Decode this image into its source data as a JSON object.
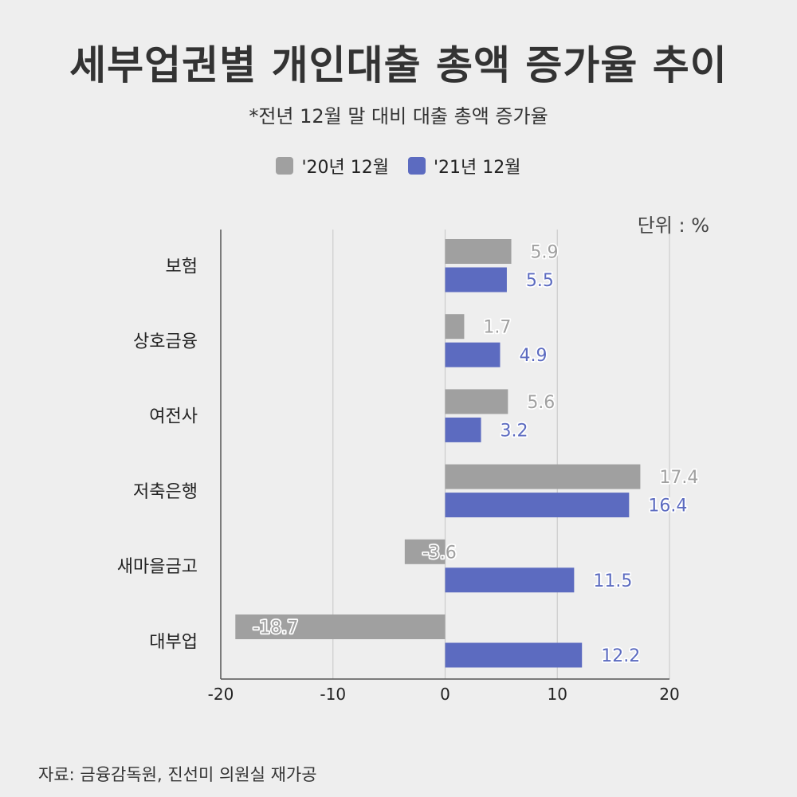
{
  "title": "세부업권별 개인대출 총액 증가율 추이",
  "subtitle": "*전년 12월 말 대비 대출 총액 증가율",
  "source": "자료: 금융감독원, 진선미 의원실 재가공",
  "colors": {
    "series_2020": "#a0a0a0",
    "series_2021": "#5c6bc0",
    "grid": "#cccccc",
    "axis": "#555555",
    "background": "#eeeeee"
  },
  "chart_data": {
    "type": "bar",
    "orientation": "horizontal",
    "categories": [
      "보험",
      "상호금융",
      "여전사",
      "저축은행",
      "새마을금고",
      "대부업"
    ],
    "series": [
      {
        "name": "'20년 12월",
        "values": [
          5.9,
          1.7,
          5.6,
          17.4,
          -3.6,
          -18.7
        ]
      },
      {
        "name": "'21년 12월",
        "values": [
          5.5,
          4.9,
          3.2,
          16.4,
          11.5,
          12.2
        ]
      }
    ],
    "xlim": [
      -20,
      20
    ],
    "xticks": [
      -20,
      -10,
      0,
      10,
      20
    ],
    "unit_label": "단위 : %",
    "legend_position": "top",
    "grid": true
  }
}
